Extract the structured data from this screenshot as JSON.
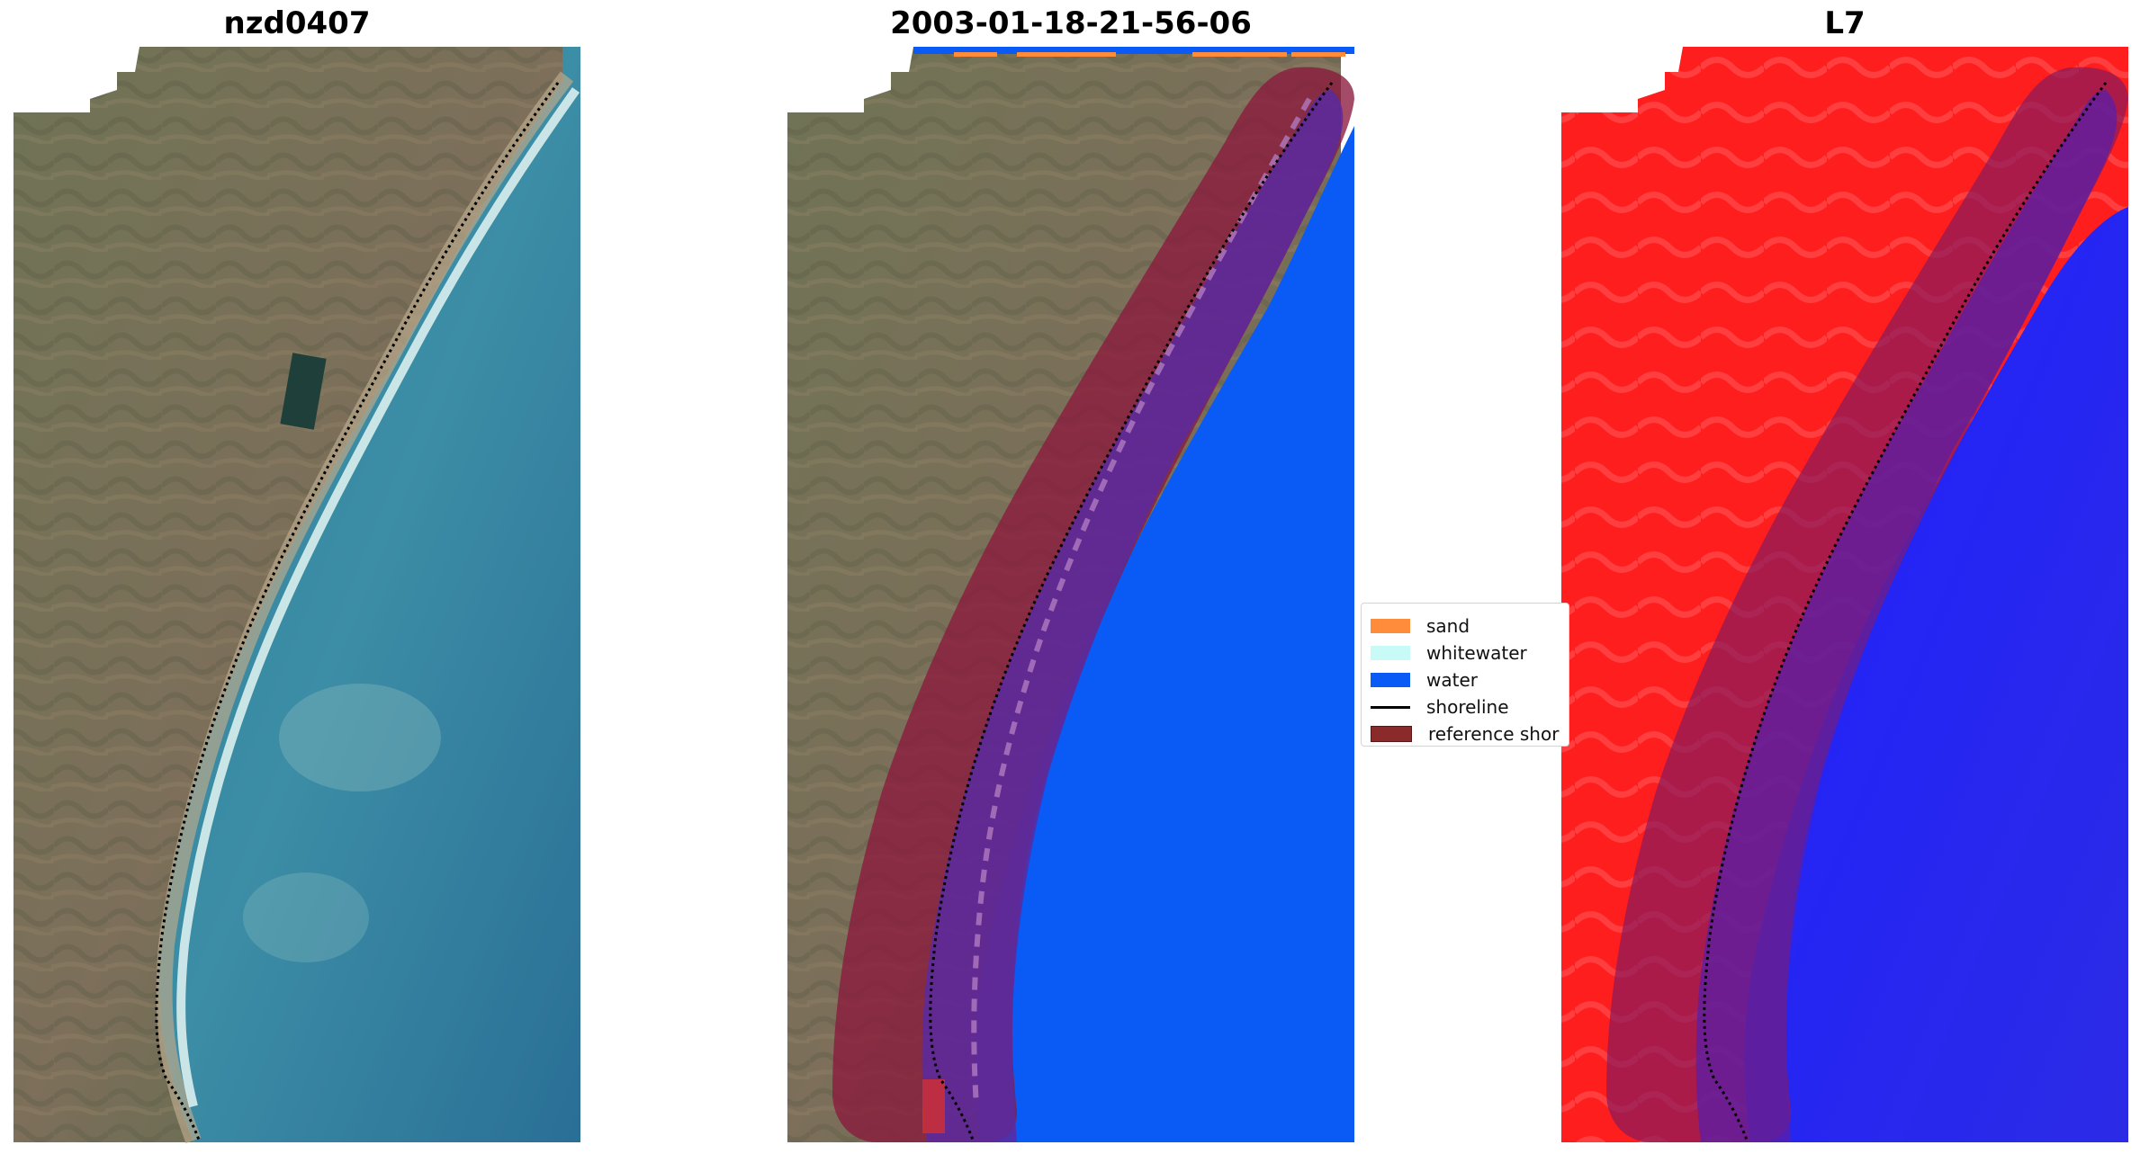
{
  "panels": {
    "left_title": "nzd0407",
    "middle_title": "2003-01-18-21-56-06",
    "right_title": "L7"
  },
  "legend": {
    "items": [
      {
        "label": "sand",
        "color": "#ff8c3a",
        "kind": "patch"
      },
      {
        "label": "whitewater",
        "color": "#c8fbf8",
        "kind": "patch"
      },
      {
        "label": "water",
        "color": "#0a5af5",
        "kind": "patch"
      },
      {
        "label": "shoreline",
        "color": "#000000",
        "kind": "line"
      },
      {
        "label": "reference shor",
        "color": "#8b2a2a",
        "kind": "patch"
      }
    ]
  },
  "colors": {
    "sea_rgb": "#3f8aa5",
    "land_rgb": "#76735a",
    "classified_water": "#0a5af5",
    "reference_buffer": "#8b1a3c",
    "index_land": "#ff1e1e",
    "index_water": "#1a1af0"
  }
}
